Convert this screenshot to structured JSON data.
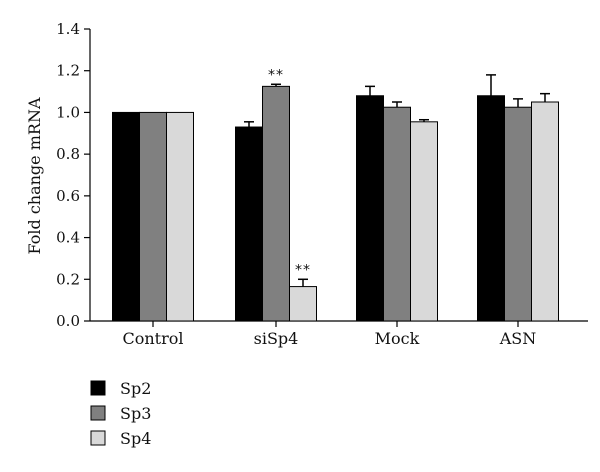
{
  "chart_data": {
    "type": "bar",
    "title": "",
    "xlabel": "",
    "ylabel": "Fold change mRNA",
    "ylim": [
      0,
      1.4
    ],
    "yticks": [
      "0.0",
      "0.2",
      "0.4",
      "0.6",
      "0.8",
      "1.0",
      "1.2",
      "1.4"
    ],
    "categories": [
      "Control",
      "siSp4",
      "Mock",
      "ASN"
    ],
    "series": [
      {
        "name": "Sp2",
        "color": "#000000",
        "values": [
          1.0,
          0.93,
          1.08,
          1.08
        ],
        "errors": [
          0.0,
          0.025,
          0.045,
          0.1
        ]
      },
      {
        "name": "Sp3",
        "color": "#808080",
        "values": [
          1.0,
          1.125,
          1.025,
          1.025
        ],
        "errors": [
          0.0,
          0.01,
          0.025,
          0.04
        ]
      },
      {
        "name": "Sp4",
        "color": "#d9d9d9",
        "values": [
          1.0,
          0.165,
          0.955,
          1.05
        ],
        "errors": [
          0.0,
          0.035,
          0.01,
          0.04
        ]
      }
    ],
    "annotations": [
      {
        "category": "siSp4",
        "series": "Sp3",
        "text": "**"
      },
      {
        "category": "siSp4",
        "series": "Sp4",
        "text": "**"
      }
    ],
    "legend_position": "bottom-left",
    "grid": false
  }
}
